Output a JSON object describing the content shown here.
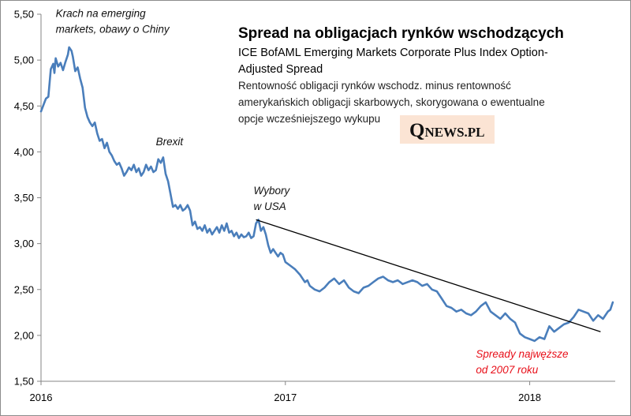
{
  "chart_data": {
    "type": "line",
    "title": "Spread na obligacjach rynków wschodzących",
    "subtitle_lines": [
      "ICE BofAML Emerging Markets Corporate Plus Index Option-",
      "Adjusted Spread"
    ],
    "description_lines": [
      "Rentowność obligacji rynków wschodz. minus rentowność",
      "amerykańskich obligacji skarbowych, skorygowana o ewentualne",
      "opcje wcześniejszego wykupu"
    ],
    "y_ticks": [
      "1,50",
      "2,00",
      "2,50",
      "3,00",
      "3,50",
      "4,00",
      "4,50",
      "5,00",
      "5,50"
    ],
    "ylim": [
      1.5,
      5.5
    ],
    "x_ticks": [
      {
        "label": "2016",
        "t": 2016.0
      },
      {
        "label": "2017",
        "t": 2017.0
      },
      {
        "label": "2018",
        "t": 2018.0
      }
    ],
    "xlim": [
      2016.0,
      2018.35
    ],
    "series": [
      {
        "name": "ICE BofAML Emerging Markets Corporate Plus Index OAS",
        "color": "#4a7ebb",
        "points": [
          [
            2016.0,
            4.44
          ],
          [
            2016.02,
            4.58
          ],
          [
            2016.03,
            4.6
          ],
          [
            2016.04,
            4.9
          ],
          [
            2016.05,
            4.96
          ],
          [
            2016.055,
            4.86
          ],
          [
            2016.06,
            5.02
          ],
          [
            2016.07,
            4.93
          ],
          [
            2016.08,
            4.97
          ],
          [
            2016.09,
            4.89
          ],
          [
            2016.1,
            4.98
          ],
          [
            2016.11,
            5.06
          ],
          [
            2016.115,
            5.14
          ],
          [
            2016.125,
            5.1
          ],
          [
            2016.13,
            5.04
          ],
          [
            2016.14,
            4.88
          ],
          [
            2016.15,
            4.92
          ],
          [
            2016.16,
            4.8
          ],
          [
            2016.17,
            4.7
          ],
          [
            2016.18,
            4.48
          ],
          [
            2016.19,
            4.38
          ],
          [
            2016.2,
            4.32
          ],
          [
            2016.21,
            4.28
          ],
          [
            2016.22,
            4.32
          ],
          [
            2016.23,
            4.2
          ],
          [
            2016.24,
            4.12
          ],
          [
            2016.25,
            4.14
          ],
          [
            2016.26,
            4.04
          ],
          [
            2016.27,
            4.1
          ],
          [
            2016.28,
            4.0
          ],
          [
            2016.29,
            3.96
          ],
          [
            2016.3,
            3.9
          ],
          [
            2016.31,
            3.86
          ],
          [
            2016.32,
            3.88
          ],
          [
            2016.33,
            3.82
          ],
          [
            2016.34,
            3.74
          ],
          [
            2016.35,
            3.78
          ],
          [
            2016.36,
            3.83
          ],
          [
            2016.37,
            3.8
          ],
          [
            2016.38,
            3.86
          ],
          [
            2016.39,
            3.78
          ],
          [
            2016.4,
            3.82
          ],
          [
            2016.41,
            3.74
          ],
          [
            2016.42,
            3.78
          ],
          [
            2016.43,
            3.86
          ],
          [
            2016.44,
            3.8
          ],
          [
            2016.45,
            3.84
          ],
          [
            2016.46,
            3.78
          ],
          [
            2016.47,
            3.8
          ],
          [
            2016.48,
            3.92
          ],
          [
            2016.49,
            3.88
          ],
          [
            2016.5,
            3.94
          ],
          [
            2016.51,
            3.76
          ],
          [
            2016.52,
            3.68
          ],
          [
            2016.53,
            3.54
          ],
          [
            2016.54,
            3.4
          ],
          [
            2016.55,
            3.42
          ],
          [
            2016.56,
            3.38
          ],
          [
            2016.57,
            3.42
          ],
          [
            2016.58,
            3.36
          ],
          [
            2016.59,
            3.38
          ],
          [
            2016.6,
            3.42
          ],
          [
            2016.61,
            3.36
          ],
          [
            2016.62,
            3.2
          ],
          [
            2016.63,
            3.24
          ],
          [
            2016.64,
            3.16
          ],
          [
            2016.65,
            3.18
          ],
          [
            2016.66,
            3.14
          ],
          [
            2016.67,
            3.2
          ],
          [
            2016.68,
            3.12
          ],
          [
            2016.69,
            3.16
          ],
          [
            2016.7,
            3.1
          ],
          [
            2016.71,
            3.14
          ],
          [
            2016.72,
            3.18
          ],
          [
            2016.73,
            3.12
          ],
          [
            2016.74,
            3.2
          ],
          [
            2016.75,
            3.14
          ],
          [
            2016.76,
            3.22
          ],
          [
            2016.77,
            3.12
          ],
          [
            2016.78,
            3.14
          ],
          [
            2016.79,
            3.08
          ],
          [
            2016.8,
            3.12
          ],
          [
            2016.81,
            3.06
          ],
          [
            2016.82,
            3.1
          ],
          [
            2016.83,
            3.07
          ],
          [
            2016.84,
            3.08
          ],
          [
            2016.85,
            3.12
          ],
          [
            2016.86,
            3.06
          ],
          [
            2016.87,
            3.08
          ],
          [
            2016.88,
            3.22
          ],
          [
            2016.89,
            3.26
          ],
          [
            2016.9,
            3.14
          ],
          [
            2016.91,
            3.18
          ],
          [
            2016.92,
            3.1
          ],
          [
            2016.93,
            2.98
          ],
          [
            2016.94,
            2.9
          ],
          [
            2016.95,
            2.94
          ],
          [
            2016.96,
            2.9
          ],
          [
            2016.97,
            2.86
          ],
          [
            2016.98,
            2.9
          ],
          [
            2016.99,
            2.88
          ],
          [
            2017.0,
            2.8
          ],
          [
            2017.02,
            2.76
          ],
          [
            2017.04,
            2.72
          ],
          [
            2017.06,
            2.66
          ],
          [
            2017.08,
            2.58
          ],
          [
            2017.09,
            2.6
          ],
          [
            2017.1,
            2.54
          ],
          [
            2017.12,
            2.5
          ],
          [
            2017.14,
            2.48
          ],
          [
            2017.16,
            2.52
          ],
          [
            2017.18,
            2.58
          ],
          [
            2017.2,
            2.62
          ],
          [
            2017.22,
            2.56
          ],
          [
            2017.24,
            2.6
          ],
          [
            2017.26,
            2.52
          ],
          [
            2017.28,
            2.48
          ],
          [
            2017.3,
            2.46
          ],
          [
            2017.32,
            2.52
          ],
          [
            2017.34,
            2.54
          ],
          [
            2017.36,
            2.58
          ],
          [
            2017.38,
            2.62
          ],
          [
            2017.4,
            2.64
          ],
          [
            2017.42,
            2.6
          ],
          [
            2017.44,
            2.58
          ],
          [
            2017.46,
            2.6
          ],
          [
            2017.48,
            2.56
          ],
          [
            2017.5,
            2.58
          ],
          [
            2017.52,
            2.6
          ],
          [
            2017.54,
            2.58
          ],
          [
            2017.56,
            2.54
          ],
          [
            2017.58,
            2.56
          ],
          [
            2017.6,
            2.5
          ],
          [
            2017.62,
            2.48
          ],
          [
            2017.64,
            2.4
          ],
          [
            2017.66,
            2.32
          ],
          [
            2017.68,
            2.3
          ],
          [
            2017.7,
            2.26
          ],
          [
            2017.72,
            2.28
          ],
          [
            2017.74,
            2.24
          ],
          [
            2017.76,
            2.22
          ],
          [
            2017.78,
            2.26
          ],
          [
            2017.8,
            2.32
          ],
          [
            2017.82,
            2.36
          ],
          [
            2017.84,
            2.26
          ],
          [
            2017.86,
            2.22
          ],
          [
            2017.88,
            2.18
          ],
          [
            2017.9,
            2.24
          ],
          [
            2017.92,
            2.18
          ],
          [
            2017.94,
            2.14
          ],
          [
            2017.96,
            2.02
          ],
          [
            2017.98,
            1.98
          ],
          [
            2018.0,
            1.96
          ],
          [
            2018.02,
            1.94
          ],
          [
            2018.04,
            1.98
          ],
          [
            2018.06,
            1.96
          ],
          [
            2018.08,
            2.1
          ],
          [
            2018.1,
            2.04
          ],
          [
            2018.12,
            2.08
          ],
          [
            2018.14,
            2.12
          ],
          [
            2018.16,
            2.14
          ],
          [
            2018.18,
            2.2
          ],
          [
            2018.2,
            2.28
          ],
          [
            2018.22,
            2.26
          ],
          [
            2018.24,
            2.24
          ],
          [
            2018.26,
            2.16
          ],
          [
            2018.28,
            2.22
          ],
          [
            2018.3,
            2.18
          ],
          [
            2018.32,
            2.26
          ],
          [
            2018.33,
            2.28
          ],
          [
            2018.34,
            2.36
          ]
        ]
      }
    ],
    "trendline": {
      "color": "#000000",
      "from": [
        2016.88,
        3.26
      ],
      "to": [
        2018.29,
        2.04
      ]
    },
    "annotations": [
      {
        "text_lines": [
          "Krach na emerging",
          "markets, obawy o Chiny"
        ],
        "style": "italic",
        "color": "#000000",
        "at": [
          2016.06,
          5.47
        ]
      },
      {
        "text_lines": [
          "Brexit"
        ],
        "style": "italic",
        "color": "#000000",
        "at": [
          2016.47,
          4.07
        ]
      },
      {
        "text_lines": [
          "Wybory",
          "w USA"
        ],
        "style": "italic",
        "color": "#000000",
        "at": [
          2016.87,
          3.54
        ]
      },
      {
        "text_lines": [
          "Spready najwęższe",
          "od 2007 roku"
        ],
        "style": "italic",
        "color": "#e8101a",
        "at": [
          2017.78,
          1.76
        ]
      }
    ]
  },
  "logo": {
    "first_letter": "Q",
    "rest": "NEWS.PL",
    "background": "#fbe4d4"
  }
}
